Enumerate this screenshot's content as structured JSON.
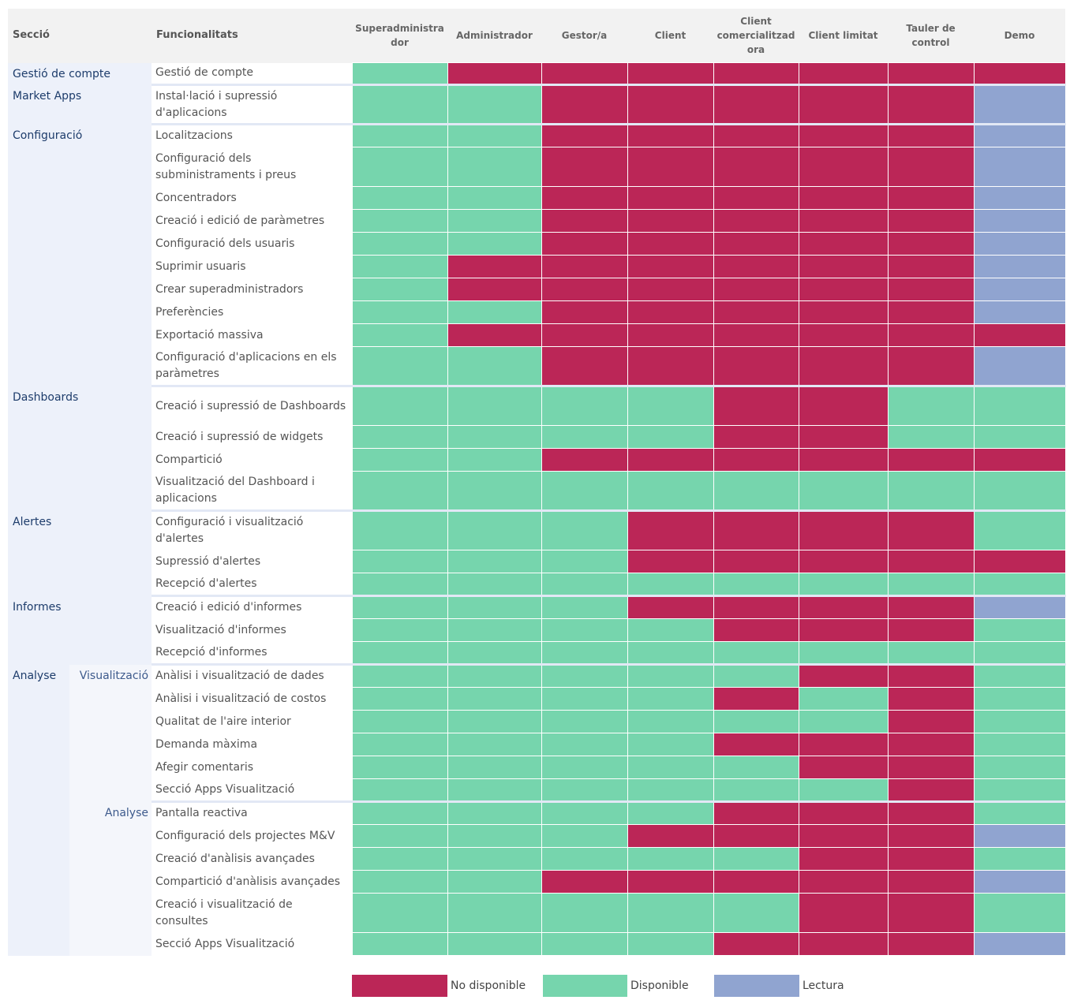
{
  "header": {
    "seccio": "Secció",
    "funcionalitats": "Funcionalitats",
    "roles": [
      "Superadministra dor",
      "Administrador",
      "Gestor/a",
      "Client",
      "Client comercialitzad ora",
      "Client limitat",
      "Tauler de control",
      "Demo"
    ]
  },
  "legend": {
    "na": "No disponible",
    "av": "Disponible",
    "ro": "Lectura"
  },
  "colors": {
    "na": "#bb2657",
    "av": "#76d5ad",
    "ro": "#90a4d0"
  },
  "rows": [
    {
      "section": "Gestió de compte",
      "label": "Gestió de compte",
      "values": [
        "av",
        "na",
        "na",
        "na",
        "na",
        "na",
        "na",
        "na"
      ]
    },
    {
      "section": "Market Apps",
      "label": "Instal·lació i supressió d'aplicacions",
      "values": [
        "av",
        "av",
        "na",
        "na",
        "na",
        "na",
        "na",
        "ro"
      ]
    },
    {
      "section": "Configuració",
      "label": "Localitzacions",
      "values": [
        "av",
        "av",
        "na",
        "na",
        "na",
        "na",
        "na",
        "ro"
      ]
    },
    {
      "label": "Configuració dels subministraments i preus",
      "values": [
        "av",
        "av",
        "na",
        "na",
        "na",
        "na",
        "na",
        "ro"
      ]
    },
    {
      "label": "Concentradors",
      "values": [
        "av",
        "av",
        "na",
        "na",
        "na",
        "na",
        "na",
        "ro"
      ]
    },
    {
      "label": "Creació i edició de paràmetres",
      "values": [
        "av",
        "av",
        "na",
        "na",
        "na",
        "na",
        "na",
        "ro"
      ]
    },
    {
      "label": "Configuració dels usuaris",
      "values": [
        "av",
        "av",
        "na",
        "na",
        "na",
        "na",
        "na",
        "ro"
      ]
    },
    {
      "label": "Suprimir usuaris",
      "values": [
        "av",
        "na",
        "na",
        "na",
        "na",
        "na",
        "na",
        "ro"
      ]
    },
    {
      "label": "Crear superadministradors",
      "values": [
        "av",
        "na",
        "na",
        "na",
        "na",
        "na",
        "na",
        "ro"
      ]
    },
    {
      "label": "Preferències",
      "values": [
        "av",
        "av",
        "na",
        "na",
        "na",
        "na",
        "na",
        "ro"
      ]
    },
    {
      "label": "Exportació massiva",
      "values": [
        "av",
        "na",
        "na",
        "na",
        "na",
        "na",
        "na",
        "na"
      ]
    },
    {
      "label": "Configuració d'aplicacions en els paràmetres",
      "values": [
        "av",
        "av",
        "na",
        "na",
        "na",
        "na",
        "na",
        "ro"
      ]
    },
    {
      "section": "Dashboards",
      "label": "Creació i supressió de Dashboards",
      "values": [
        "av",
        "av",
        "av",
        "av",
        "na",
        "na",
        "av",
        "av"
      ]
    },
    {
      "label": "Creació i supressió de widgets",
      "values": [
        "av",
        "av",
        "av",
        "av",
        "na",
        "na",
        "av",
        "av"
      ]
    },
    {
      "label": "Compartició",
      "values": [
        "av",
        "av",
        "na",
        "na",
        "na",
        "na",
        "na",
        "na"
      ]
    },
    {
      "label": "Visualització del Dashboard i aplicacions",
      "values": [
        "av",
        "av",
        "av",
        "av",
        "av",
        "av",
        "av",
        "av"
      ]
    },
    {
      "section": "Alertes",
      "label": "Configuració i visualització d'alertes",
      "values": [
        "av",
        "av",
        "av",
        "na",
        "na",
        "na",
        "na",
        "av"
      ]
    },
    {
      "label": "Supressió d'alertes",
      "values": [
        "av",
        "av",
        "av",
        "na",
        "na",
        "na",
        "na",
        "na"
      ]
    },
    {
      "label": "Recepció d'alertes",
      "values": [
        "av",
        "av",
        "av",
        "av",
        "av",
        "av",
        "av",
        "av"
      ]
    },
    {
      "section": "Informes",
      "label": "Creació i edició d'informes",
      "values": [
        "av",
        "av",
        "av",
        "na",
        "na",
        "na",
        "na",
        "ro"
      ]
    },
    {
      "label": "Visualització d'informes",
      "values": [
        "av",
        "av",
        "av",
        "av",
        "na",
        "na",
        "na",
        "av"
      ]
    },
    {
      "label": "Recepció d'informes",
      "values": [
        "av",
        "av",
        "av",
        "av",
        "av",
        "av",
        "av",
        "av"
      ]
    },
    {
      "section": "Analyse",
      "sub": "Visualització",
      "label": "Anàlisi i visualització de dades",
      "values": [
        "av",
        "av",
        "av",
        "av",
        "av",
        "na",
        "na",
        "av"
      ]
    },
    {
      "label": "Anàlisi i visualització de costos",
      "values": [
        "av",
        "av",
        "av",
        "av",
        "na",
        "av",
        "na",
        "av"
      ]
    },
    {
      "label": "Qualitat de l'aire interior",
      "values": [
        "av",
        "av",
        "av",
        "av",
        "av",
        "av",
        "na",
        "av"
      ]
    },
    {
      "label": "Demanda màxima",
      "values": [
        "av",
        "av",
        "av",
        "av",
        "na",
        "na",
        "na",
        "av"
      ]
    },
    {
      "label": "Afegir comentaris",
      "values": [
        "av",
        "av",
        "av",
        "av",
        "av",
        "na",
        "na",
        "av"
      ]
    },
    {
      "label": "Secció Apps Visualització",
      "values": [
        "av",
        "av",
        "av",
        "av",
        "av",
        "av",
        "na",
        "av"
      ]
    },
    {
      "sub": "Analyse",
      "label": "Pantalla reactiva",
      "values": [
        "av",
        "av",
        "av",
        "av",
        "na",
        "na",
        "na",
        "av"
      ]
    },
    {
      "label": "Configuració dels projectes M&V",
      "values": [
        "av",
        "av",
        "av",
        "na",
        "na",
        "na",
        "na",
        "ro"
      ]
    },
    {
      "label": "Creació d'anàlisis avançades",
      "values": [
        "av",
        "av",
        "av",
        "av",
        "av",
        "na",
        "na",
        "av"
      ]
    },
    {
      "label": "Compartició d'anàlisis avançades",
      "values": [
        "av",
        "av",
        "na",
        "na",
        "na",
        "na",
        "na",
        "ro"
      ]
    },
    {
      "label": "Creació i visualització de consultes",
      "values": [
        "av",
        "av",
        "av",
        "av",
        "av",
        "na",
        "na",
        "av"
      ]
    },
    {
      "label": "Secció Apps Visualització",
      "values": [
        "av",
        "av",
        "av",
        "av",
        "na",
        "na",
        "na",
        "ro"
      ]
    }
  ]
}
